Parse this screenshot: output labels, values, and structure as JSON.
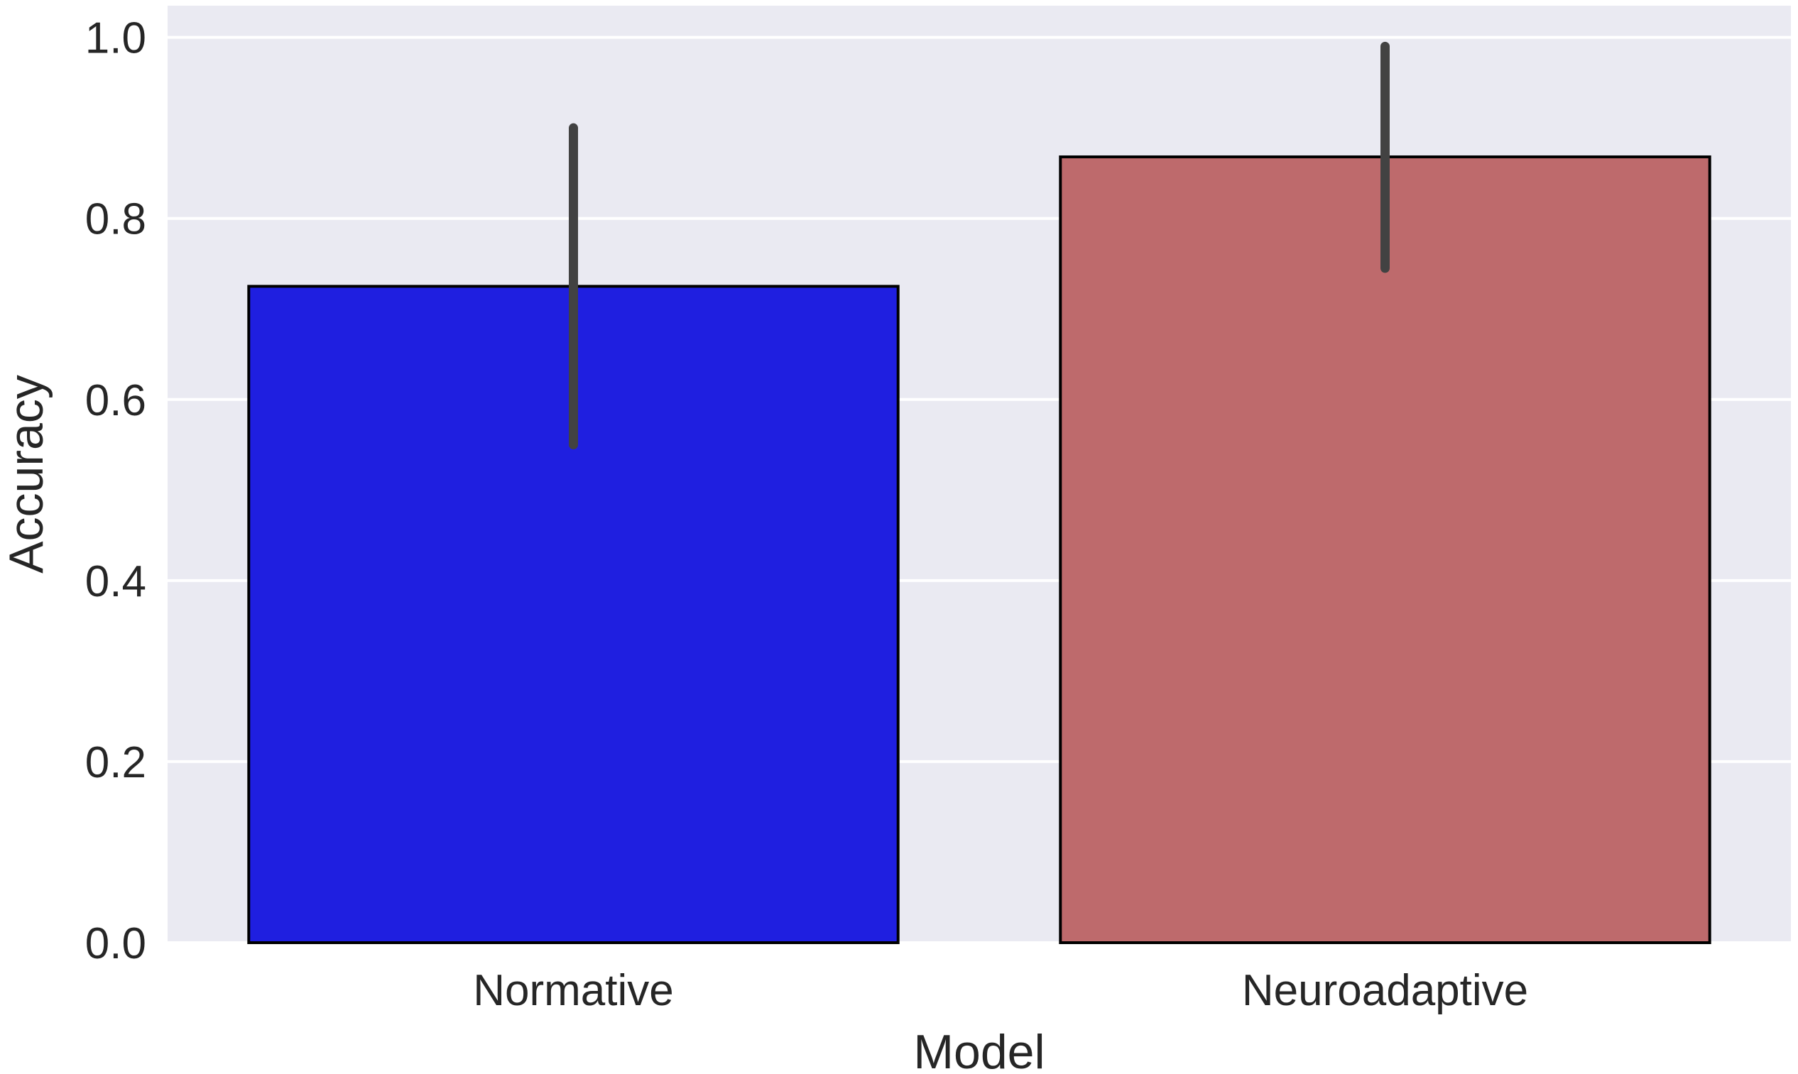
{
  "chart_data": {
    "type": "bar",
    "title": "",
    "xlabel": "Model",
    "ylabel": "Accuracy",
    "categories": [
      "Normative",
      "Neuroadaptive"
    ],
    "values": [
      0.725,
      0.868
    ],
    "error_bars": [
      {
        "low": 0.55,
        "high": 0.9
      },
      {
        "low": 0.745,
        "high": 0.99
      }
    ],
    "ylim": [
      0,
      1.035
    ],
    "yticks": [
      "0.0",
      "0.2",
      "0.4",
      "0.6",
      "0.8",
      "1.0"
    ],
    "ytick_values": [
      0,
      0.2,
      0.4,
      0.6,
      0.8,
      1.0
    ],
    "grid": true,
    "legend": "none",
    "colors": {
      "background": "#eaeaf2",
      "grid": "#ffffff",
      "bars": [
        "#1f1fe0",
        "#be6a6c"
      ],
      "bar_edge": "#000000",
      "error_bar": "#424242",
      "text": "#262626"
    }
  }
}
